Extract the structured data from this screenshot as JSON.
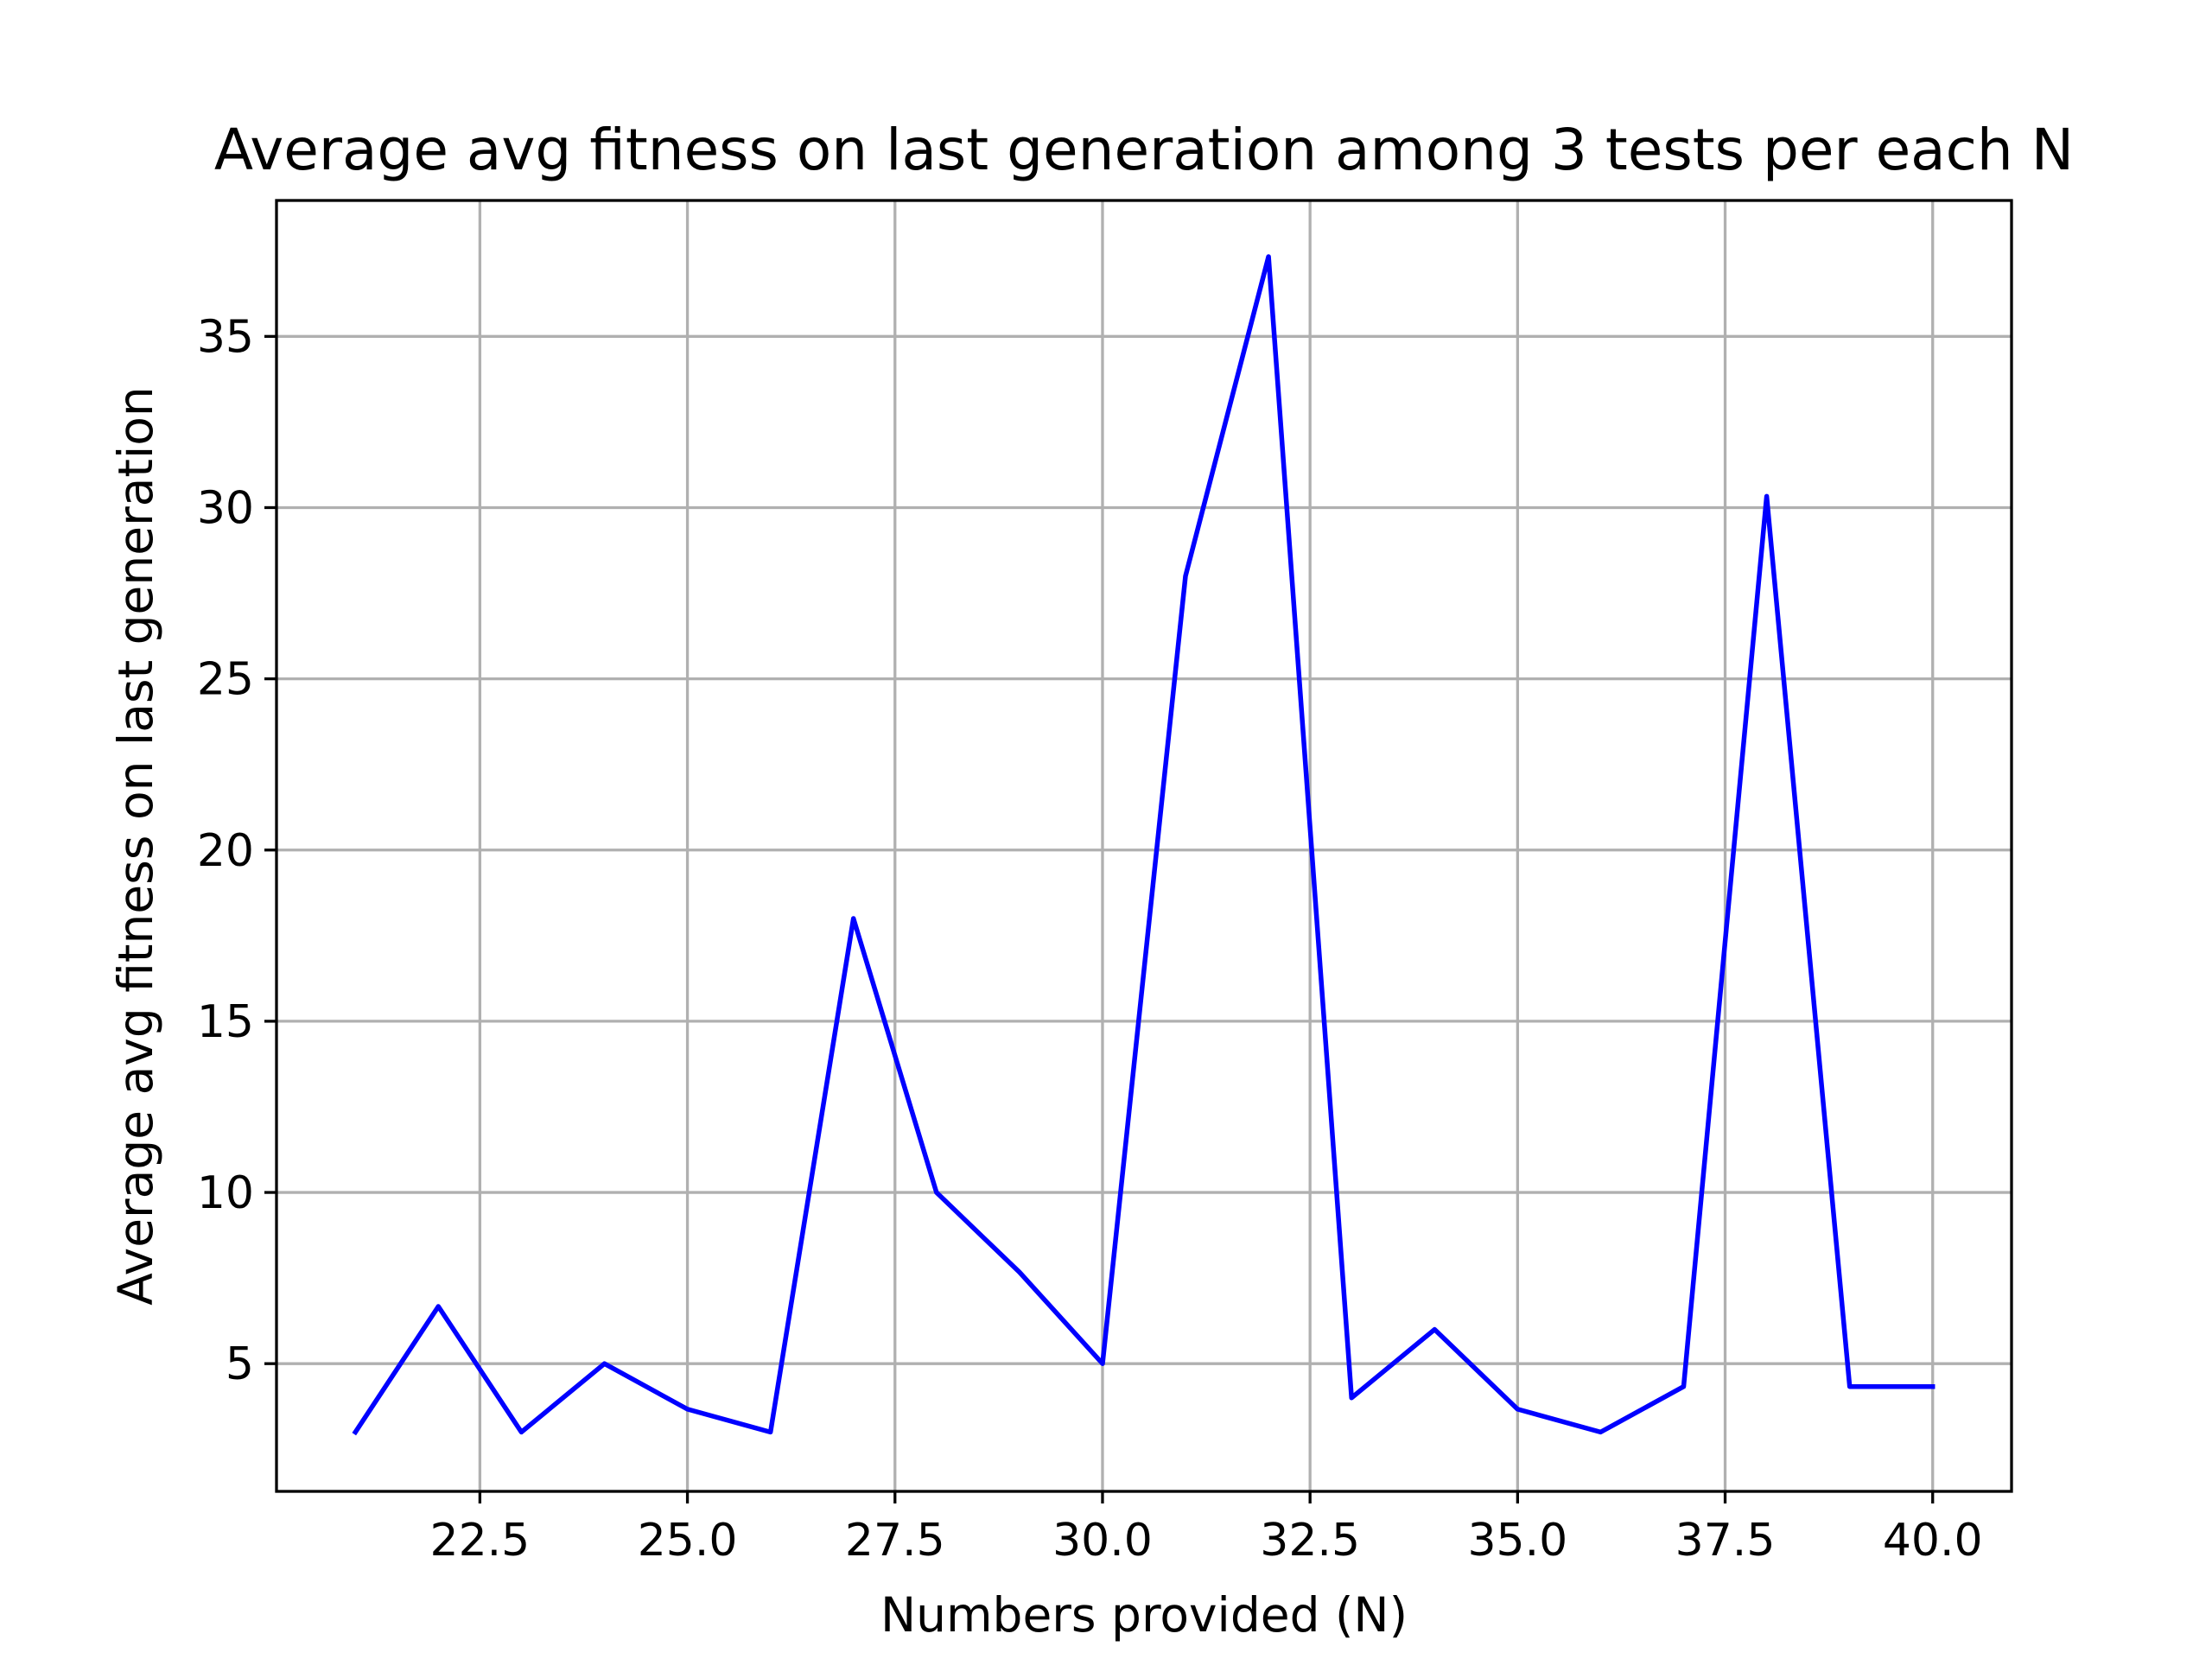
{
  "chart_data": {
    "type": "line",
    "title": "Average avg fitness on last generation among 3 tests per each N",
    "xlabel": "Numbers provided (N)",
    "ylabel": "Average avg fitness on last generation",
    "xlim": [
      20.05,
      40.95
    ],
    "ylim": [
      1.27,
      38.97
    ],
    "x_ticks": [
      "22.5",
      "25.0",
      "27.5",
      "30.0",
      "32.5",
      "35.0",
      "37.5",
      "40.0"
    ],
    "x_tick_values": [
      22.5,
      25.0,
      27.5,
      30.0,
      32.5,
      35.0,
      37.5,
      40.0
    ],
    "y_ticks": [
      "5",
      "10",
      "15",
      "20",
      "25",
      "30",
      "35"
    ],
    "y_tick_values": [
      5,
      10,
      15,
      20,
      25,
      30,
      35
    ],
    "grid": true,
    "series": [
      {
        "color": "#0000ff",
        "x": [
          21,
          22,
          23,
          24,
          25,
          26,
          27,
          28,
          29,
          30,
          31,
          32,
          33,
          34,
          35,
          36,
          37,
          38,
          39,
          40
        ],
        "y": [
          3.0,
          6.67,
          3.0,
          5.0,
          3.67,
          3.0,
          18.0,
          10.0,
          7.67,
          5.0,
          28.0,
          37.33,
          4.0,
          6.0,
          3.67,
          3.0,
          4.33,
          30.33,
          4.33,
          4.33
        ]
      }
    ]
  }
}
